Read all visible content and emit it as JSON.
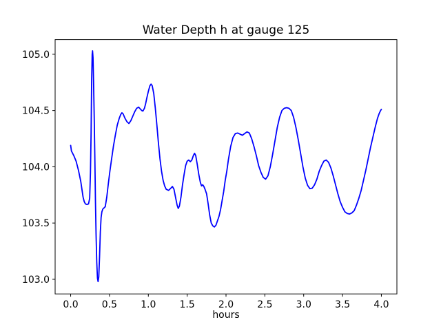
{
  "chart_data": {
    "type": "line",
    "title": "Water Depth h at gauge 125",
    "xlabel": "hours",
    "ylabel": "",
    "grid": false,
    "legend": null,
    "line_color": "#0000ff",
    "background_color": "#ffffff",
    "xlim": [
      -0.2,
      4.2
    ],
    "ylim": [
      102.87,
      105.13
    ],
    "x_ticks": {
      "values": [
        0,
        0.5,
        1.0,
        1.5,
        2.0,
        2.5,
        3.0,
        3.5,
        4.0
      ],
      "labels": [
        "0.0",
        "0.5",
        "1.0",
        "1.5",
        "2.0",
        "2.5",
        "3.0",
        "3.5",
        "4.0"
      ]
    },
    "y_ticks": {
      "values": [
        103.0,
        103.5,
        104.0,
        104.5,
        105.0
      ],
      "labels": [
        "103.0",
        "103.5",
        "104.0",
        "104.5",
        "105.0"
      ]
    },
    "series": [
      {
        "name": "water-depth-h",
        "x": [
          0.0,
          0.01,
          0.04,
          0.07,
          0.1,
          0.13,
          0.16,
          0.175,
          0.19,
          0.21,
          0.23,
          0.245,
          0.255,
          0.263,
          0.27,
          0.277,
          0.282,
          0.288,
          0.295,
          0.303,
          0.311,
          0.319,
          0.327,
          0.336,
          0.345,
          0.353,
          0.362,
          0.372,
          0.382,
          0.392,
          0.402,
          0.415,
          0.43,
          0.445,
          0.465,
          0.485,
          0.505,
          0.525,
          0.55,
          0.575,
          0.6,
          0.625,
          0.645,
          0.66,
          0.675,
          0.7,
          0.725,
          0.75,
          0.775,
          0.8,
          0.825,
          0.85,
          0.875,
          0.895,
          0.915,
          0.93,
          0.95,
          0.965,
          0.98,
          1.0,
          1.02,
          1.035,
          1.05,
          1.07,
          1.09,
          1.11,
          1.13,
          1.15,
          1.17,
          1.19,
          1.21,
          1.23,
          1.26,
          1.29,
          1.31,
          1.33,
          1.35,
          1.37,
          1.385,
          1.4,
          1.42,
          1.44,
          1.46,
          1.48,
          1.5,
          1.52,
          1.54,
          1.56,
          1.58,
          1.595,
          1.61,
          1.63,
          1.65,
          1.67,
          1.685,
          1.7,
          1.715,
          1.73,
          1.75,
          1.77,
          1.79,
          1.81,
          1.83,
          1.85,
          1.87,
          1.89,
          1.91,
          1.93,
          1.95,
          1.97,
          1.99,
          2.01,
          2.03,
          2.06,
          2.09,
          2.12,
          2.15,
          2.18,
          2.21,
          2.24,
          2.27,
          2.3,
          2.33,
          2.36,
          2.39,
          2.42,
          2.45,
          2.48,
          2.51,
          2.54,
          2.57,
          2.6,
          2.63,
          2.66,
          2.69,
          2.72,
          2.75,
          2.78,
          2.81,
          2.84,
          2.87,
          2.9,
          2.93,
          2.96,
          2.99,
          3.02,
          3.05,
          3.08,
          3.11,
          3.14,
          3.17,
          3.2,
          3.23,
          3.26,
          3.29,
          3.32,
          3.35,
          3.38,
          3.41,
          3.44,
          3.47,
          3.5,
          3.53,
          3.56,
          3.59,
          3.62,
          3.65,
          3.68,
          3.71,
          3.74,
          3.77,
          3.8,
          3.83,
          3.86,
          3.89,
          3.92,
          3.95,
          3.97,
          3.99,
          4.0
        ],
        "y": [
          104.19,
          104.14,
          104.1,
          104.05,
          103.97,
          103.87,
          103.73,
          103.69,
          103.67,
          103.665,
          103.67,
          103.72,
          103.95,
          104.3,
          104.75,
          105.0,
          105.03,
          104.97,
          104.75,
          104.45,
          104.1,
          103.7,
          103.4,
          103.15,
          103.01,
          102.98,
          103.02,
          103.2,
          103.42,
          103.55,
          103.6,
          103.625,
          103.635,
          103.645,
          103.73,
          103.85,
          103.96,
          104.06,
          104.18,
          104.28,
          104.37,
          104.43,
          104.465,
          104.48,
          104.47,
          104.43,
          104.4,
          104.385,
          104.41,
          104.45,
          104.49,
          104.52,
          104.53,
          104.515,
          104.5,
          104.495,
          104.52,
          104.56,
          104.61,
          104.67,
          104.72,
          104.735,
          104.72,
          104.65,
          104.52,
          104.37,
          104.21,
          104.07,
          103.96,
          103.88,
          103.83,
          103.8,
          103.79,
          103.81,
          103.825,
          103.8,
          103.73,
          103.66,
          103.63,
          103.65,
          103.73,
          103.84,
          103.93,
          104.01,
          104.05,
          104.06,
          104.045,
          104.06,
          104.1,
          104.12,
          104.1,
          104.02,
          103.93,
          103.86,
          103.83,
          103.84,
          103.825,
          103.8,
          103.76,
          103.67,
          103.57,
          103.5,
          103.475,
          103.465,
          103.48,
          103.52,
          103.56,
          103.62,
          103.7,
          103.78,
          103.88,
          103.96,
          104.06,
          104.18,
          104.26,
          104.295,
          104.3,
          104.29,
          104.28,
          104.295,
          104.31,
          104.3,
          104.25,
          104.18,
          104.1,
          104.01,
          103.95,
          103.905,
          103.89,
          103.92,
          104.0,
          104.11,
          104.23,
          104.35,
          104.44,
          104.5,
          104.52,
          104.525,
          104.52,
          104.5,
          104.44,
          104.35,
          104.24,
          104.12,
          104.0,
          103.9,
          103.835,
          103.805,
          103.81,
          103.84,
          103.89,
          103.96,
          104.01,
          104.05,
          104.06,
          104.04,
          103.99,
          103.92,
          103.84,
          103.76,
          103.69,
          103.64,
          103.6,
          103.585,
          103.58,
          103.59,
          103.61,
          103.66,
          103.72,
          103.79,
          103.88,
          103.97,
          104.07,
          104.17,
          104.26,
          104.35,
          104.43,
          104.47,
          104.5,
          104.51
        ]
      }
    ]
  }
}
